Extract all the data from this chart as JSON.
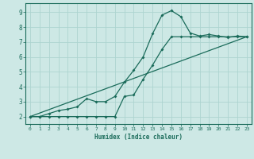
{
  "title": "",
  "xlabel": "Humidex (Indice chaleur)",
  "bg_color": "#cde8e5",
  "grid_color": "#add4d0",
  "line_color": "#1a6b5a",
  "xlim": [
    -0.5,
    23.5
  ],
  "ylim": [
    1.5,
    9.6
  ],
  "xticks": [
    0,
    1,
    2,
    3,
    4,
    5,
    6,
    7,
    8,
    9,
    10,
    11,
    12,
    13,
    14,
    15,
    16,
    17,
    18,
    19,
    20,
    21,
    22,
    23
  ],
  "yticks": [
    2,
    3,
    4,
    5,
    6,
    7,
    8,
    9
  ],
  "line1_x": [
    0,
    1,
    2,
    3,
    4,
    5,
    6,
    7,
    8,
    9,
    10,
    11,
    12,
    13,
    14,
    15,
    16,
    17,
    18,
    19,
    20,
    21,
    22,
    23
  ],
  "line1_y": [
    2.0,
    2.0,
    2.2,
    2.4,
    2.5,
    2.65,
    3.2,
    3.0,
    3.0,
    3.35,
    4.3,
    5.1,
    6.0,
    7.55,
    8.8,
    9.1,
    8.7,
    7.6,
    7.4,
    7.5,
    7.4,
    7.3,
    7.4,
    7.35
  ],
  "line2_x": [
    0,
    1,
    2,
    3,
    4,
    5,
    6,
    7,
    8,
    9,
    10,
    11,
    12,
    13,
    14,
    15,
    16,
    17,
    18,
    19,
    20,
    21,
    22,
    23
  ],
  "line2_y": [
    2.0,
    2.0,
    2.0,
    2.0,
    2.0,
    2.0,
    2.0,
    2.0,
    2.0,
    2.0,
    3.35,
    3.45,
    4.5,
    5.45,
    6.5,
    7.35,
    7.35,
    7.35,
    7.35,
    7.35,
    7.35,
    7.35,
    7.35,
    7.35
  ],
  "line3_x": [
    0,
    23
  ],
  "line3_y": [
    2.0,
    7.35
  ],
  "marker": "D",
  "marker_size": 2.0,
  "linewidth": 0.9
}
